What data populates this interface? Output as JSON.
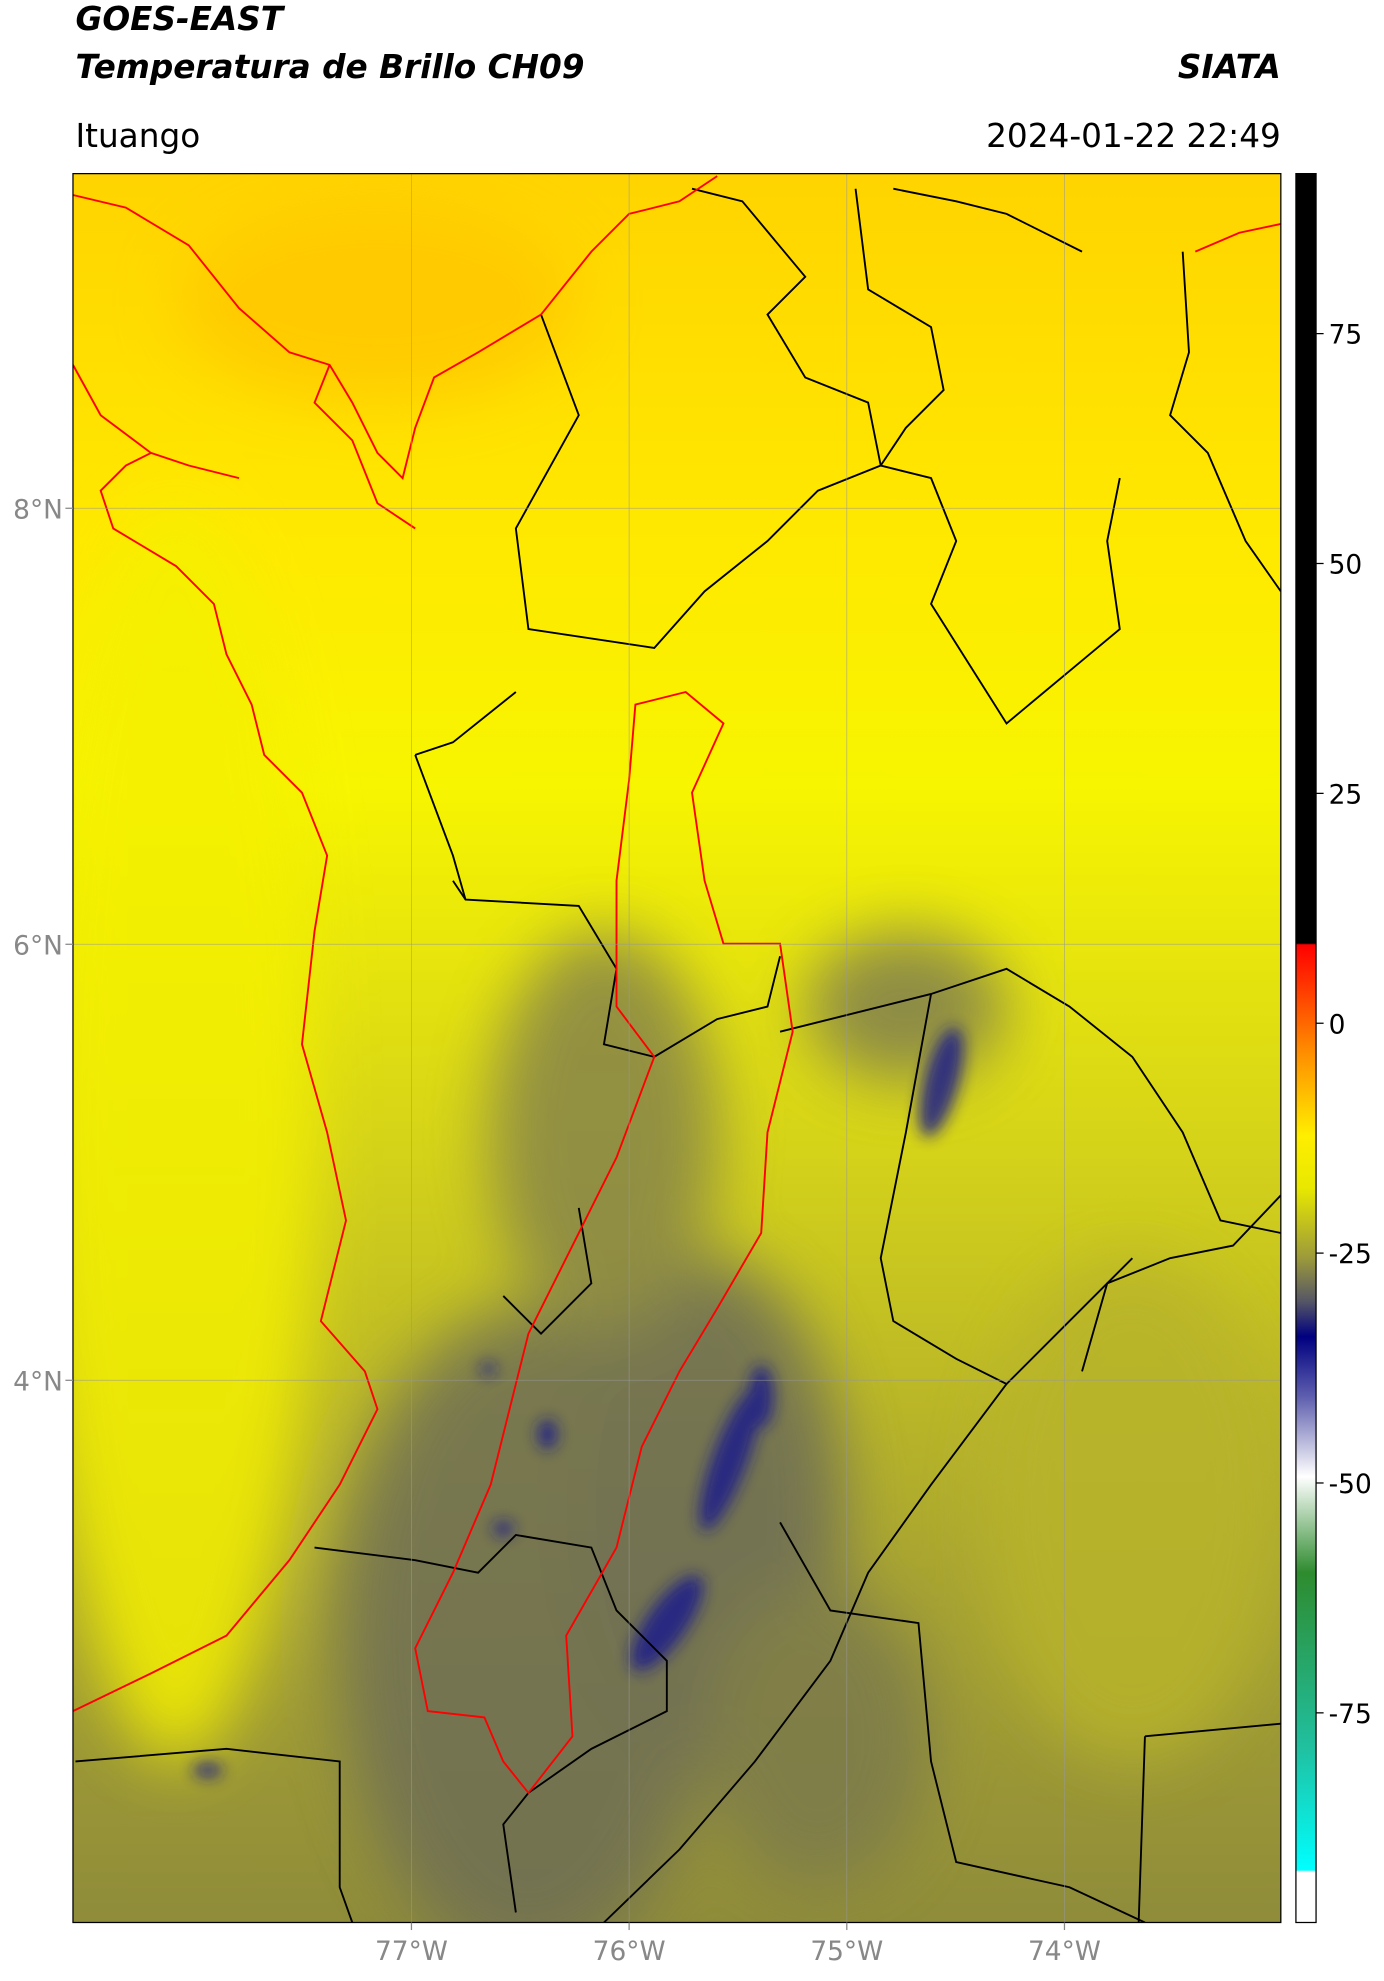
{
  "header": {
    "title": "GOES-EAST",
    "subtitle": "Temperatura de Brillo CH09",
    "source": "SIATA",
    "region": "Ituango",
    "datetime": "2024-01-22 22:49"
  },
  "map": {
    "xlim": [
      -78.555,
      -73.006
    ],
    "ylim": [
      1.513,
      9.535
    ],
    "xticks": [
      {
        "value": -77,
        "label": "77°W"
      },
      {
        "value": -76,
        "label": "76°W"
      },
      {
        "value": -75,
        "label": "75°W"
      },
      {
        "value": -74,
        "label": "74°W"
      }
    ],
    "yticks": [
      {
        "value": 8,
        "label": "8°N"
      },
      {
        "value": 6,
        "label": "6°N"
      },
      {
        "value": 4,
        "label": "4°N"
      }
    ],
    "grid": true
  },
  "colorbar": {
    "lim": [
      -97.8,
      92.4
    ],
    "ticks": [
      75,
      50,
      25,
      0,
      -25,
      -50,
      -75
    ]
  }
}
